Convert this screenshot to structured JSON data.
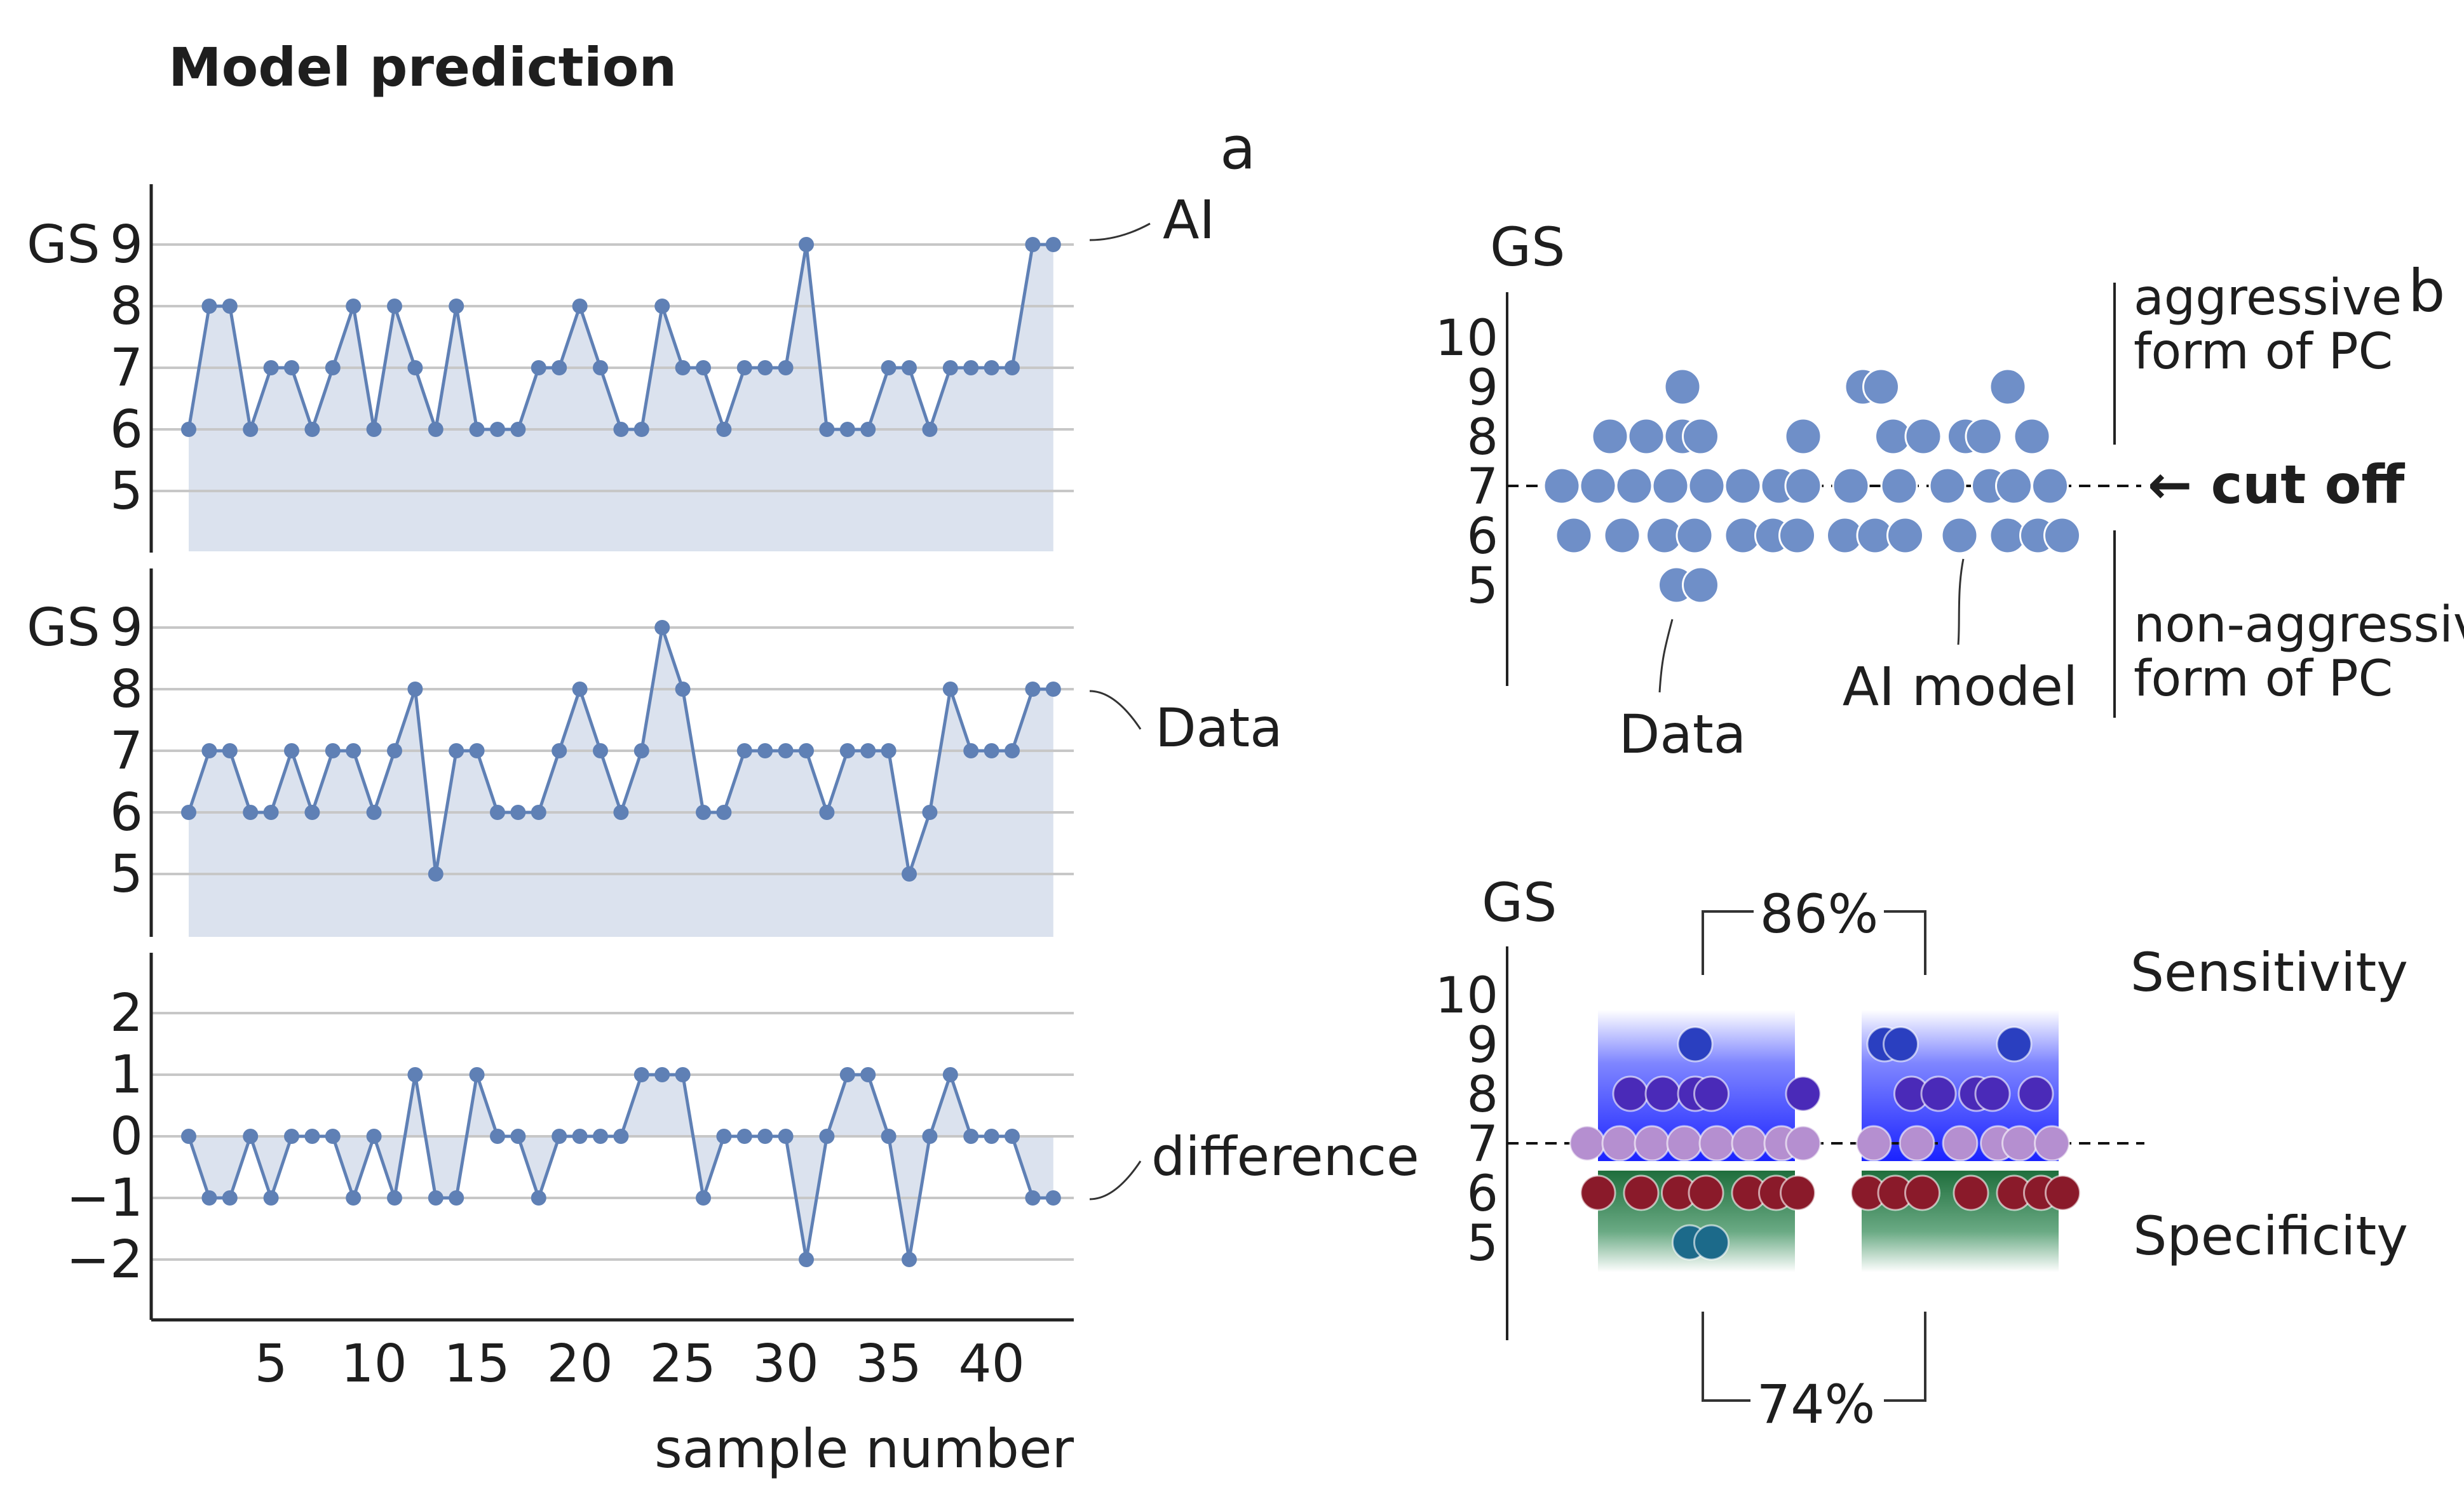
{
  "figure": {
    "title": "Model prediction",
    "panel_a_letter": "a",
    "panel_b_letter": "b"
  },
  "chart_data": [
    {
      "panel": "a",
      "type": "area",
      "xlabel": "sample number",
      "x_ticks": [
        5,
        10,
        15,
        20,
        25,
        30,
        35,
        40
      ],
      "x": [
        1,
        2,
        3,
        4,
        5,
        6,
        7,
        8,
        9,
        10,
        11,
        12,
        13,
        14,
        15,
        16,
        17,
        18,
        19,
        20,
        21,
        22,
        23,
        24,
        25,
        26,
        27,
        28,
        29,
        30,
        31,
        32,
        33,
        34,
        35,
        36,
        37,
        38,
        39,
        40,
        41,
        42,
        43
      ],
      "grid": true,
      "series": [
        {
          "name": "AI",
          "ylabel": "GS",
          "yticks": [
            5,
            6,
            7,
            8,
            9
          ],
          "ylim": [
            4,
            10
          ],
          "values": [
            6,
            8,
            8,
            6,
            7,
            7,
            6,
            7,
            8,
            6,
            8,
            7,
            6,
            8,
            6,
            6,
            6,
            7,
            7,
            8,
            7,
            6,
            6,
            8,
            7,
            7,
            6,
            7,
            7,
            7,
            9,
            6,
            6,
            6,
            7,
            7,
            6,
            7,
            7,
            7,
            7,
            9,
            9
          ]
        },
        {
          "name": "Data",
          "ylabel": "GS",
          "yticks": [
            5,
            6,
            7,
            8,
            9
          ],
          "ylim": [
            4,
            10
          ],
          "values": [
            6,
            7,
            7,
            6,
            6,
            7,
            6,
            7,
            7,
            6,
            7,
            8,
            5,
            7,
            7,
            6,
            6,
            6,
            7,
            8,
            7,
            6,
            7,
            9,
            8,
            6,
            6,
            7,
            7,
            7,
            7,
            6,
            7,
            7,
            7,
            5,
            6,
            8,
            7,
            7,
            7,
            8,
            8
          ]
        },
        {
          "name": "difference",
          "ylabel": "",
          "yticks": [
            -2,
            -1,
            0,
            1,
            2
          ],
          "ytick_labels": [
            "−2",
            "−1",
            "0",
            "1",
            "2"
          ],
          "ylim": [
            -3,
            3
          ],
          "values": [
            0,
            -1,
            -1,
            0,
            -1,
            0,
            0,
            0,
            -1,
            0,
            -1,
            1,
            -1,
            -1,
            1,
            0,
            0,
            -1,
            0,
            0,
            0,
            0,
            1,
            1,
            1,
            -1,
            0,
            0,
            0,
            0,
            -2,
            0,
            1,
            1,
            0,
            -2,
            0,
            1,
            0,
            0,
            0,
            -1,
            -1
          ]
        }
      ]
    },
    {
      "panel": "b-top",
      "type": "scatter",
      "ylabel": "GS",
      "yticks": [
        5,
        6,
        7,
        8,
        9,
        10
      ],
      "categories": [
        "Data",
        "AI model"
      ],
      "cutoff": 7,
      "cutoff_label": "← cut off",
      "upper_label": [
        "aggressive",
        "form of PC"
      ],
      "lower_label": [
        "non-aggressive",
        "form of PC"
      ],
      "dot_color": "#6f8fc8",
      "points": {
        "Data": {
          "9": [
            0
          ],
          "8": [
            -0.6,
            -0.3,
            0.0,
            0.15,
            1.0
          ],
          "7": [
            -1.0,
            -0.7,
            -0.4,
            -0.1,
            0.2,
            0.5,
            0.8,
            1.0
          ],
          "6": [
            -0.9,
            -0.5,
            -0.15,
            0.1,
            0.5,
            0.75,
            0.95
          ],
          "5": [
            -0.05,
            0.15
          ]
        },
        "AI model": {
          "9": [
            -0.7,
            -0.55,
            0.5
          ],
          "8": [
            -0.45,
            -0.2,
            0.15,
            0.3,
            0.7
          ],
          "7": [
            -0.8,
            -0.4,
            0.0,
            0.35,
            0.55,
            0.85
          ],
          "6": [
            -0.85,
            -0.6,
            -0.35,
            0.1,
            0.5,
            0.75,
            0.95
          ]
        }
      }
    },
    {
      "panel": "b-bottom",
      "type": "scatter",
      "ylabel": "GS",
      "yticks": [
        5,
        6,
        7,
        8,
        9,
        10
      ],
      "cutoff": 7,
      "sensitivity_label": "Sensitivity",
      "specificity_label": "Specificity",
      "sensitivity_value": "86%",
      "specificity_value": "74%",
      "colors": {
        "sensitivity_band": "#1a22ff",
        "specificity_band": "#1f6e3c",
        "dot_upper_9": "#2a3fc0",
        "dot_upper_8": "#4a2ab8",
        "dot_on_cutoff": "#b58fd0",
        "dot_lower": "#8a1a2a",
        "dot_5": "#1c6a8a"
      }
    }
  ]
}
